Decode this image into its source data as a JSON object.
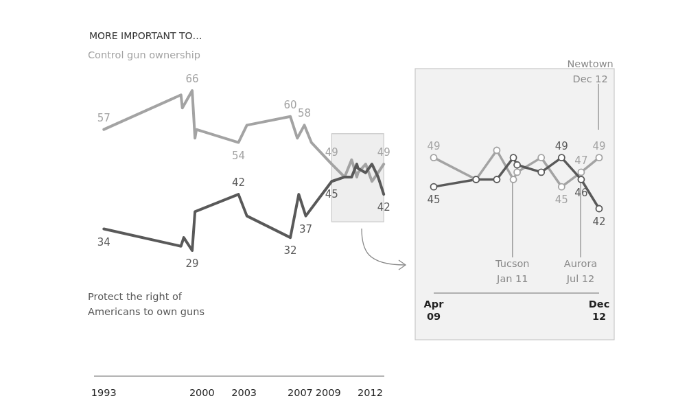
{
  "chart_data": [
    {
      "type": "line",
      "title": "MORE IMPORTANT TO…",
      "xlim": [
        1992.3,
        2013
      ],
      "xticks": [
        1993,
        2000,
        2003,
        2007,
        2009,
        2012
      ],
      "tick_labels": "x",
      "marker": "none",
      "bands": [
        {
          "axis": "x",
          "from": 2009.25,
          "to": 2012.96,
          "color": "#eeeeee"
        }
      ],
      "series": [
        {
          "name": "Control gun ownership",
          "color": "#a3a3a3",
          "x": [
            1993,
            1998.5,
            1998.6,
            1999.3,
            1999.5,
            1999.6,
            2002.6,
            2003.2,
            2006.3,
            2006.8,
            2007.3,
            2007.8,
            2009.25,
            2010.17,
            2010.67,
            2011.04,
            2011.12,
            2011.67,
            2012.12,
            2012.56,
            2012.96
          ],
          "values": [
            57,
            65,
            62,
            66,
            55,
            57,
            54,
            58,
            60,
            55,
            58,
            54,
            49,
            46,
            50,
            46,
            47,
            49,
            45,
            47,
            49
          ],
          "value_labels": [
            "57",
            null,
            null,
            "66",
            null,
            null,
            "54",
            null,
            "60",
            null,
            "58",
            null,
            "49",
            null,
            null,
            null,
            null,
            null,
            null,
            null,
            "49"
          ]
        },
        {
          "name": "Protect the right of Americans to own guns",
          "color": "#595959",
          "x": [
            1993,
            1998.5,
            1998.7,
            1999.3,
            1999.5,
            2002.6,
            2003.2,
            2006.3,
            2006.9,
            2007.4,
            2009.25,
            2010.17,
            2010.67,
            2011.04,
            2011.12,
            2011.67,
            2012.12,
            2012.56,
            2012.96
          ],
          "values": [
            34,
            30,
            32,
            29,
            38,
            42,
            37,
            32,
            42,
            37,
            45,
            46,
            46,
            49,
            48,
            47,
            49,
            46,
            42
          ],
          "value_labels": [
            "34",
            null,
            null,
            "29",
            null,
            "42",
            null,
            "32",
            null,
            "37",
            "45",
            null,
            null,
            null,
            null,
            null,
            null,
            null,
            "42"
          ]
        }
      ]
    },
    {
      "type": "line",
      "xlim": [
        "2009-04-01",
        "2012-12-19"
      ],
      "xticks": [
        {
          "value": "2009-04-01",
          "label": "Apr 09"
        },
        {
          "value": "2012-12-19",
          "label": "Dec 12"
        }
      ],
      "tick_labels": "x",
      "marker": "circle",
      "ref_lines": [
        {
          "axis": "x",
          "value": "2011-01-08",
          "label": "Tucson Jan 11"
        },
        {
          "axis": "x",
          "value": "2012-07-20",
          "label": "Aurora Jul 12"
        },
        {
          "axis": "x",
          "value": "2012-12-14",
          "label": "Newtown Dec 12"
        }
      ],
      "series": [
        {
          "color": "#a3a3a3",
          "x": [
            "2009-04-01",
            "2010-03-15",
            "2010-09-01",
            "2011-01-15",
            "2011-02-15",
            "2011-09-01",
            "2012-02-15",
            "2012-07-25",
            "2012-12-19"
          ],
          "values": [
            49,
            46,
            50,
            46,
            47,
            49,
            45,
            47,
            49
          ],
          "value_labels": [
            "49",
            null,
            null,
            null,
            null,
            null,
            "45",
            "47",
            "49"
          ]
        },
        {
          "color": "#595959",
          "x": [
            "2009-04-01",
            "2010-03-15",
            "2010-09-01",
            "2011-01-15",
            "2011-02-15",
            "2011-09-01",
            "2012-02-15",
            "2012-07-25",
            "2012-12-19"
          ],
          "values": [
            45,
            46,
            46,
            49,
            48,
            47,
            49,
            46,
            42
          ],
          "value_labels": [
            "45",
            null,
            null,
            null,
            null,
            null,
            "49",
            "46",
            "42"
          ]
        }
      ]
    }
  ]
}
